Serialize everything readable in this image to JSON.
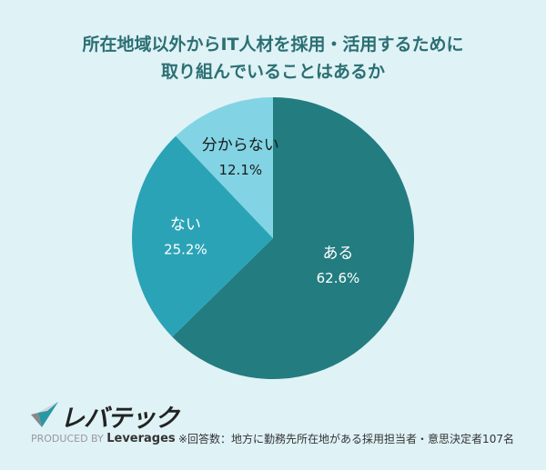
{
  "title": {
    "line1": "所在地域以外からIT人材を採用・活用するために",
    "line2": "取り組んでいることはあるか"
  },
  "chart_data": {
    "type": "pie",
    "title": "所在地域以外からIT人材を採用・活用するために取り組んでいることはあるか",
    "slices": [
      {
        "label": "ある",
        "value": 62.6,
        "value_label": "62.6%",
        "color": "#237c80",
        "text_color": "#ffffff"
      },
      {
        "label": "ない",
        "value": 25.2,
        "value_label": "25.2%",
        "color": "#2ba3b6",
        "text_color": "#ffffff"
      },
      {
        "label": "分からない",
        "value": 12.1,
        "value_label": "12.1%",
        "color": "#82d4e4",
        "text_color": "#1a1a1a"
      }
    ],
    "start": "12 o'clock",
    "direction": "clockwise"
  },
  "footer": {
    "brand": "レバテック",
    "produced_by": "PRODUCED BY",
    "company": "Leverages",
    "note": "※回答数：地方に勤務先所在地がある採用担当者・意思決定者107名"
  }
}
